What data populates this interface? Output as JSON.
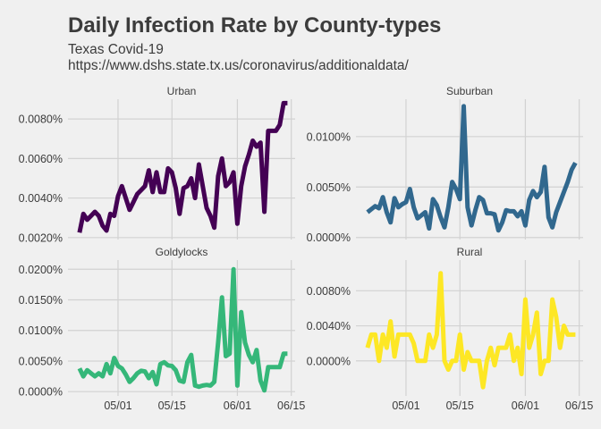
{
  "header": {
    "title": "Daily Infection Rate by County-types",
    "subtitle": "Texas Covid-19",
    "source": "https://www.dshs.state.tx.us/coronavirus/additionaldata/"
  },
  "chart_data": {
    "type": "line",
    "facet_layout": "2x2",
    "x_axis": {
      "ticks": [
        "2020-05-01",
        "2020-05-15",
        "2020-06-01",
        "2020-06-15"
      ],
      "tick_labels": [
        "05/01",
        "05/15",
        "06/01",
        "06/15"
      ],
      "range": [
        "2020-04-18",
        "2020-06-16"
      ]
    },
    "x": [
      "2020-04-21",
      "2020-04-22",
      "2020-04-23",
      "2020-04-24",
      "2020-04-25",
      "2020-04-26",
      "2020-04-27",
      "2020-04-28",
      "2020-04-29",
      "2020-04-30",
      "2020-05-01",
      "2020-05-02",
      "2020-05-03",
      "2020-05-04",
      "2020-05-05",
      "2020-05-06",
      "2020-05-07",
      "2020-05-08",
      "2020-05-09",
      "2020-05-10",
      "2020-05-11",
      "2020-05-12",
      "2020-05-13",
      "2020-05-14",
      "2020-05-15",
      "2020-05-16",
      "2020-05-17",
      "2020-05-18",
      "2020-05-19",
      "2020-05-20",
      "2020-05-21",
      "2020-05-22",
      "2020-05-23",
      "2020-05-24",
      "2020-05-25",
      "2020-05-26",
      "2020-05-27",
      "2020-05-28",
      "2020-05-29",
      "2020-05-30",
      "2020-05-31",
      "2020-06-01",
      "2020-06-02",
      "2020-06-03",
      "2020-06-04",
      "2020-06-05",
      "2020-06-06",
      "2020-06-07",
      "2020-06-08",
      "2020-06-09",
      "2020-06-10",
      "2020-06-11",
      "2020-06-12",
      "2020-06-13",
      "2020-06-14"
    ],
    "panels": [
      {
        "name": "Urban",
        "color": "#440154",
        "y_ticks": [
          0.002,
          0.004,
          0.006,
          0.008
        ],
        "y_tick_labels": [
          "0.0020%",
          "0.0040%",
          "0.0060%",
          "0.0080%"
        ],
        "ylim": [
          0.0019,
          0.009
        ],
        "values": [
          0.00225,
          0.0032,
          0.0029,
          0.0031,
          0.0033,
          0.0031,
          0.0026,
          0.00235,
          0.0032,
          0.0031,
          0.0041,
          0.0046,
          0.004,
          0.0034,
          0.0038,
          0.0042,
          0.0044,
          0.0046,
          0.0054,
          0.0043,
          0.0053,
          0.0043,
          0.0043,
          0.0055,
          0.0053,
          0.0045,
          0.0032,
          0.0045,
          0.0046,
          0.005,
          0.004,
          0.0057,
          0.0046,
          0.0035,
          0.0031,
          0.0025,
          0.0051,
          0.006,
          0.0046,
          0.0048,
          0.0053,
          0.0027,
          0.0046,
          0.0056,
          0.0062,
          0.0069,
          0.0066,
          0.0068,
          0.0033,
          0.0074,
          0.0074,
          0.0074,
          0.0077,
          0.0088,
          0.0088
        ]
      },
      {
        "name": "Suburban",
        "color": "#31688e",
        "y_ticks": [
          0.0,
          0.005,
          0.01
        ],
        "y_tick_labels": [
          "0.0000%",
          "0.0050%",
          "0.0100%"
        ],
        "ylim": [
          -0.0002,
          0.0137
        ],
        "values": [
          0.0025,
          0.0028,
          0.0031,
          0.0029,
          0.004,
          0.0025,
          0.0015,
          0.0039,
          0.003,
          0.0033,
          0.0035,
          0.0048,
          0.003,
          0.0019,
          0.0022,
          0.0025,
          0.0009,
          0.0038,
          0.0032,
          0.002,
          0.001,
          0.003,
          0.0055,
          0.0048,
          0.0038,
          0.013,
          0.003,
          0.0012,
          0.0027,
          0.004,
          0.0037,
          0.0024,
          0.0024,
          0.0023,
          0.0007,
          0.0015,
          0.0027,
          0.0026,
          0.0026,
          0.0021,
          0.0026,
          0.0012,
          0.0037,
          0.0046,
          0.004,
          0.0045,
          0.007,
          0.002,
          0.001,
          0.0025,
          0.0035,
          0.0045,
          0.0055,
          0.0067,
          0.0074
        ]
      },
      {
        "name": "Goldylocks",
        "color": "#35b779",
        "y_ticks": [
          0.0,
          5e-05,
          0.0001,
          0.00015,
          0.0002
        ],
        "y_tick_labels": [
          "0.0000%",
          "0.0050%",
          "0.0100%",
          "0.0150%",
          "0.0200%"
        ],
        "ylim": [
          -7e-06,
          0.000215
        ],
        "values": [
          3.8e-05,
          2.5e-05,
          3.5e-05,
          3e-05,
          2.5e-05,
          3e-05,
          2.5e-05,
          4.5e-05,
          3e-05,
          5.5e-05,
          4.2e-05,
          3.8e-05,
          2.8e-05,
          1.6e-05,
          2.2e-05,
          3e-05,
          3.4e-05,
          3.3e-05,
          2.2e-05,
          3.2e-05,
          1.2e-05,
          4.5e-05,
          4.8e-05,
          4.3e-05,
          4.2e-05,
          3.5e-05,
          1.8e-05,
          1.6e-05,
          4.8e-05,
          6e-05,
          1e-05,
          8e-06,
          1e-05,
          1.1e-05,
          1e-05,
          1.6e-05,
          8e-05,
          0.000154,
          5.8e-05,
          6.2e-05,
          0.0002,
          1e-05,
          0.00013,
          8e-05,
          6e-05,
          4.8e-05,
          6.8e-05,
          1.8e-05,
          2e-06,
          4e-05,
          4e-05,
          4e-05,
          4e-05,
          6.2e-05,
          6.2e-05
        ]
      },
      {
        "name": "Rural",
        "color": "#fde725",
        "y_ticks": [
          0.0,
          4e-05,
          8e-05
        ],
        "y_tick_labels": [
          "0.0000%",
          "0.0040%",
          "0.0080%"
        ],
        "ylim": [
          -4e-05,
          0.000115
        ],
        "values": [
          1.5e-05,
          3e-05,
          3e-05,
          0.0,
          3e-05,
          1.5e-05,
          4.5e-05,
          5e-06,
          3e-05,
          3e-05,
          3e-05,
          3e-05,
          2e-05,
          0.0,
          0.0,
          0.0,
          3e-05,
          1.5e-05,
          3e-05,
          0.0001,
          0.0,
          -1e-05,
          0.0,
          0.0,
          3e-05,
          -1e-05,
          1e-05,
          0.0,
          0.0,
          0.0,
          -3e-05,
          0.0,
          1.5e-05,
          -5e-06,
          1.5e-05,
          1.5e-05,
          1.5e-05,
          3e-05,
          0.0,
          1.5e-05,
          -1.5e-05,
          7e-05,
          1.5e-05,
          3e-05,
          5.5e-05,
          -1.5e-05,
          0.0,
          0.0,
          7e-05,
          5e-05,
          1.5e-05,
          4e-05,
          3e-05,
          3e-05,
          3e-05
        ]
      }
    ]
  }
}
